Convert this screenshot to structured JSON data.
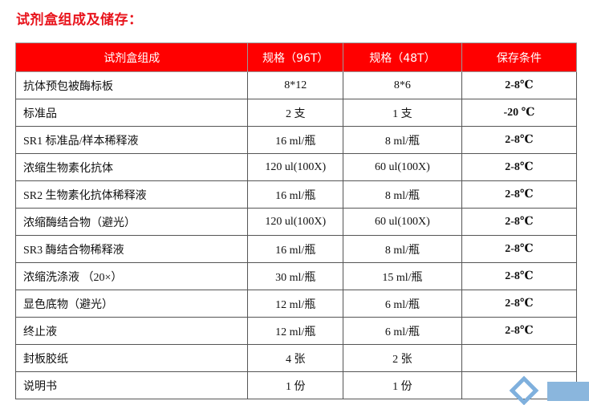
{
  "title": "试剂盒组成及储存：",
  "table": {
    "headers": [
      "试剂盒组成",
      "规格（96T）",
      "规格（48T）",
      "保存条件"
    ],
    "rows": [
      [
        "抗体预包被酶标板",
        "8*12",
        "8*6",
        "2-8℃"
      ],
      [
        "标准品",
        "2 支",
        "1 支",
        "-20 ℃"
      ],
      [
        "SR1 标准品/样本稀释液",
        "16 ml/瓶",
        "8 ml/瓶",
        "2-8℃"
      ],
      [
        "浓缩生物素化抗体",
        "120 ul(100X)",
        "60 ul(100X)",
        "2-8℃"
      ],
      [
        "SR2 生物素化抗体稀释液",
        "16 ml/瓶",
        "8 ml/瓶",
        "2-8℃"
      ],
      [
        "浓缩酶结合物（避光）",
        "120 ul(100X)",
        "60 ul(100X)",
        "2-8℃"
      ],
      [
        "SR3 酶结合物稀释液",
        "16 ml/瓶",
        "8 ml/瓶",
        "2-8℃"
      ],
      [
        "浓缩洗涤液 （20×）",
        "30 ml/瓶",
        "15 ml/瓶",
        "2-8℃"
      ],
      [
        "显色底物（避光）",
        "12 ml/瓶",
        "6 ml/瓶",
        "2-8℃"
      ],
      [
        "终止液",
        "12 ml/瓶",
        "6 ml/瓶",
        "2-8℃"
      ],
      [
        "封板胶纸",
        "4 张",
        "2 张",
        ""
      ],
      [
        "说明书",
        "1 份",
        "1 份",
        ""
      ]
    ]
  },
  "colors": {
    "accent": "#ff0000",
    "title": "#e8141c",
    "watermark": "#8ab6dd"
  },
  "icons": {
    "watermark": "diamond-logo-icon"
  }
}
